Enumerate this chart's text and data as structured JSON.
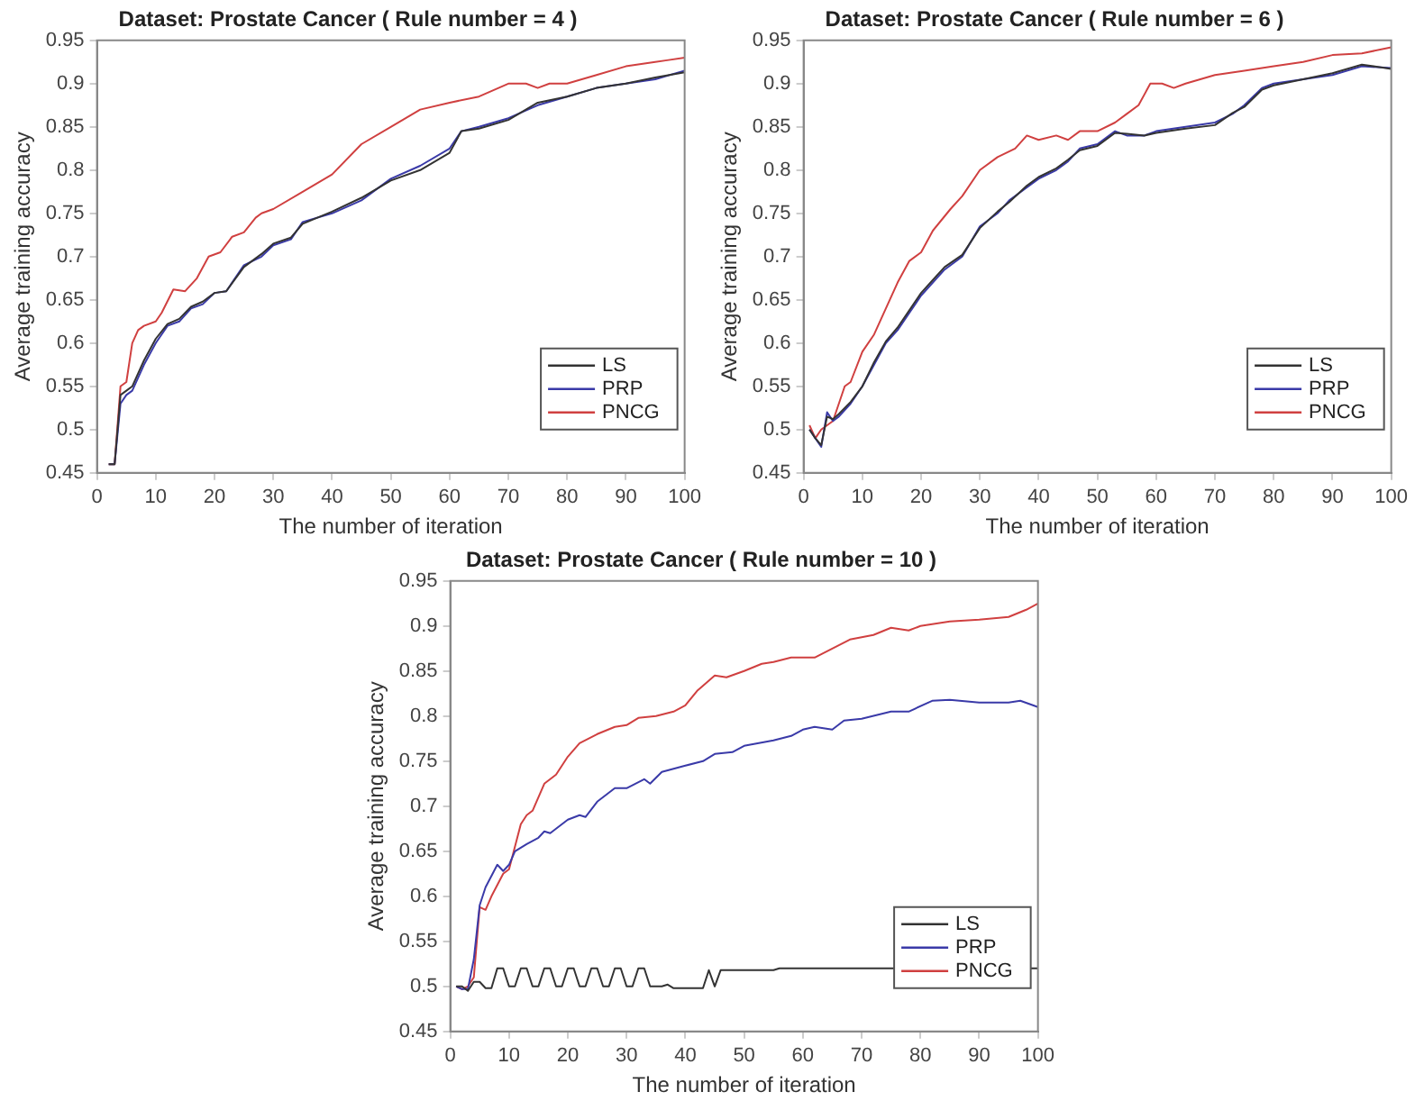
{
  "chart_data": [
    {
      "type": "line",
      "title": "Dataset: Prostate Cancer ( Rule number = 4 )",
      "xlabel": "The number of iteration",
      "ylabel": "Average training accuracy",
      "xlim": [
        0,
        100
      ],
      "xticks": [
        0,
        10,
        20,
        30,
        40,
        50,
        60,
        70,
        80,
        90,
        100
      ],
      "ylim": [
        0.45,
        0.95
      ],
      "yticks": [
        0.45,
        0.5,
        0.55,
        0.6,
        0.65,
        0.7,
        0.75,
        0.8,
        0.85,
        0.9,
        0.95
      ],
      "legend": "bottom right",
      "marker": "none",
      "line_style": "solid",
      "series": [
        {
          "name": "LS",
          "color": "#333333",
          "x": [
            2,
            3,
            4,
            5,
            6,
            8,
            10,
            12,
            14,
            16,
            18,
            20,
            22,
            25,
            28,
            30,
            33,
            35,
            40,
            45,
            50,
            55,
            60,
            62,
            65,
            70,
            75,
            80,
            85,
            90,
            95,
            100
          ],
          "values": [
            0.46,
            0.46,
            0.54,
            0.545,
            0.55,
            0.58,
            0.605,
            0.622,
            0.628,
            0.642,
            0.648,
            0.658,
            0.66,
            0.688,
            0.703,
            0.715,
            0.722,
            0.738,
            0.752,
            0.768,
            0.788,
            0.8,
            0.82,
            0.845,
            0.848,
            0.858,
            0.878,
            0.885,
            0.895,
            0.9,
            0.907,
            0.913
          ]
        },
        {
          "name": "PRP",
          "color": "#3a3aa8",
          "x": [
            2,
            3,
            4,
            5,
            6,
            8,
            10,
            12,
            14,
            16,
            18,
            20,
            22,
            25,
            28,
            30,
            33,
            35,
            40,
            45,
            50,
            55,
            60,
            62,
            65,
            70,
            75,
            80,
            85,
            90,
            95,
            100
          ],
          "values": [
            0.46,
            0.46,
            0.53,
            0.54,
            0.545,
            0.575,
            0.6,
            0.62,
            0.625,
            0.64,
            0.645,
            0.658,
            0.66,
            0.69,
            0.7,
            0.713,
            0.72,
            0.74,
            0.75,
            0.765,
            0.79,
            0.805,
            0.825,
            0.845,
            0.85,
            0.86,
            0.875,
            0.885,
            0.895,
            0.9,
            0.905,
            0.915
          ]
        },
        {
          "name": "PNCG",
          "color": "#d04040",
          "x": [
            2,
            3,
            4,
            5,
            6,
            7,
            8,
            10,
            11,
            13,
            15,
            17,
            19,
            21,
            23,
            25,
            27,
            28,
            30,
            35,
            40,
            45,
            50,
            55,
            60,
            65,
            70,
            73,
            75,
            77,
            80,
            85,
            90,
            95,
            97,
            100
          ],
          "values": [
            0.46,
            0.46,
            0.55,
            0.555,
            0.6,
            0.615,
            0.62,
            0.625,
            0.635,
            0.662,
            0.66,
            0.675,
            0.7,
            0.705,
            0.723,
            0.728,
            0.745,
            0.75,
            0.755,
            0.775,
            0.795,
            0.83,
            0.85,
            0.87,
            0.878,
            0.885,
            0.9,
            0.9,
            0.895,
            0.9,
            0.9,
            0.91,
            0.92,
            0.925,
            0.927,
            0.93
          ]
        }
      ]
    },
    {
      "type": "line",
      "title": "Dataset: Prostate Cancer ( Rule number = 6 )",
      "xlabel": "The number of iteration",
      "ylabel": "Average training accuracy",
      "xlim": [
        0,
        100
      ],
      "xticks": [
        0,
        10,
        20,
        30,
        40,
        50,
        60,
        70,
        80,
        90,
        100
      ],
      "ylim": [
        0.45,
        0.95
      ],
      "yticks": [
        0.45,
        0.5,
        0.55,
        0.6,
        0.65,
        0.7,
        0.75,
        0.8,
        0.85,
        0.9,
        0.95
      ],
      "legend": "bottom right",
      "marker": "none",
      "line_style": "solid",
      "series": [
        {
          "name": "LS",
          "color": "#333333",
          "x": [
            1,
            2,
            3,
            4,
            5,
            6,
            8,
            10,
            12,
            14,
            16,
            18,
            20,
            22,
            24,
            27,
            30,
            33,
            35,
            38,
            40,
            43,
            45,
            47,
            50,
            53,
            55,
            58,
            60,
            65,
            70,
            73,
            75,
            78,
            80,
            85,
            90,
            95,
            100
          ],
          "values": [
            0.5,
            0.49,
            0.482,
            0.515,
            0.512,
            0.518,
            0.532,
            0.55,
            0.578,
            0.602,
            0.618,
            0.638,
            0.658,
            0.673,
            0.688,
            0.702,
            0.733,
            0.752,
            0.763,
            0.782,
            0.792,
            0.802,
            0.812,
            0.823,
            0.828,
            0.843,
            0.842,
            0.84,
            0.843,
            0.848,
            0.852,
            0.866,
            0.873,
            0.893,
            0.898,
            0.905,
            0.912,
            0.922,
            0.917
          ]
        },
        {
          "name": "PRP",
          "color": "#3a3aa8",
          "x": [
            1,
            2,
            3,
            4,
            5,
            6,
            8,
            10,
            12,
            14,
            16,
            18,
            20,
            22,
            24,
            27,
            30,
            33,
            35,
            38,
            40,
            43,
            45,
            47,
            50,
            53,
            55,
            58,
            60,
            65,
            70,
            73,
            75,
            78,
            80,
            85,
            90,
            95,
            100
          ],
          "values": [
            0.5,
            0.49,
            0.48,
            0.52,
            0.51,
            0.515,
            0.53,
            0.55,
            0.575,
            0.6,
            0.615,
            0.635,
            0.655,
            0.67,
            0.685,
            0.7,
            0.735,
            0.75,
            0.765,
            0.78,
            0.79,
            0.8,
            0.81,
            0.825,
            0.83,
            0.845,
            0.84,
            0.84,
            0.845,
            0.85,
            0.855,
            0.865,
            0.875,
            0.895,
            0.9,
            0.905,
            0.91,
            0.92,
            0.918
          ]
        },
        {
          "name": "PNCG",
          "color": "#d04040",
          "x": [
            1,
            2,
            3,
            5,
            7,
            8,
            10,
            12,
            14,
            16,
            18,
            20,
            22,
            25,
            27,
            30,
            33,
            36,
            38,
            40,
            43,
            45,
            47,
            50,
            53,
            55,
            57,
            59,
            61,
            63,
            65,
            70,
            75,
            80,
            85,
            90,
            95,
            100
          ],
          "values": [
            0.505,
            0.49,
            0.5,
            0.51,
            0.55,
            0.555,
            0.59,
            0.61,
            0.64,
            0.67,
            0.695,
            0.705,
            0.73,
            0.755,
            0.77,
            0.8,
            0.815,
            0.825,
            0.84,
            0.835,
            0.84,
            0.835,
            0.845,
            0.845,
            0.855,
            0.865,
            0.875,
            0.9,
            0.9,
            0.895,
            0.9,
            0.91,
            0.915,
            0.92,
            0.925,
            0.933,
            0.935,
            0.942
          ]
        }
      ]
    },
    {
      "type": "line",
      "title": "Dataset: Prostate Cancer ( Rule number = 10 )",
      "xlabel": "The number of iteration",
      "ylabel": "Average training accuracy",
      "xlim": [
        0,
        100
      ],
      "xticks": [
        0,
        10,
        20,
        30,
        40,
        50,
        60,
        70,
        80,
        90,
        100
      ],
      "ylim": [
        0.45,
        0.95
      ],
      "yticks": [
        0.45,
        0.5,
        0.55,
        0.6,
        0.65,
        0.7,
        0.75,
        0.8,
        0.85,
        0.9,
        0.95
      ],
      "legend": "bottom right",
      "marker": "none",
      "line_style": "solid",
      "series": [
        {
          "name": "LS",
          "color": "#333333",
          "x": [
            1,
            2,
            3,
            4,
            5,
            6,
            7,
            8,
            9,
            10,
            11,
            12,
            13,
            14,
            15,
            16,
            17,
            18,
            19,
            20,
            21,
            22,
            23,
            24,
            25,
            26,
            27,
            28,
            29,
            30,
            31,
            32,
            33,
            34,
            36,
            37,
            38,
            43,
            44,
            45,
            46,
            55,
            56,
            100
          ],
          "values": [
            0.5,
            0.5,
            0.495,
            0.505,
            0.505,
            0.498,
            0.498,
            0.52,
            0.52,
            0.5,
            0.5,
            0.52,
            0.52,
            0.5,
            0.5,
            0.52,
            0.52,
            0.5,
            0.5,
            0.52,
            0.52,
            0.5,
            0.5,
            0.52,
            0.52,
            0.5,
            0.5,
            0.52,
            0.52,
            0.5,
            0.5,
            0.52,
            0.52,
            0.5,
            0.5,
            0.502,
            0.498,
            0.498,
            0.518,
            0.5,
            0.518,
            0.518,
            0.52,
            0.52
          ]
        },
        {
          "name": "PRP",
          "color": "#3a3aa8",
          "x": [
            1,
            2,
            3,
            4,
            5,
            6,
            8,
            9,
            10,
            11,
            13,
            15,
            16,
            17,
            20,
            22,
            23,
            25,
            28,
            30,
            33,
            34,
            36,
            40,
            43,
            45,
            48,
            50,
            55,
            58,
            60,
            62,
            65,
            67,
            70,
            75,
            78,
            82,
            85,
            90,
            95,
            97,
            100
          ],
          "values": [
            0.5,
            0.497,
            0.497,
            0.53,
            0.59,
            0.61,
            0.635,
            0.628,
            0.635,
            0.65,
            0.658,
            0.665,
            0.672,
            0.67,
            0.685,
            0.69,
            0.688,
            0.705,
            0.72,
            0.72,
            0.73,
            0.725,
            0.738,
            0.745,
            0.75,
            0.758,
            0.76,
            0.767,
            0.773,
            0.778,
            0.785,
            0.788,
            0.785,
            0.795,
            0.797,
            0.805,
            0.805,
            0.817,
            0.818,
            0.815,
            0.815,
            0.817,
            0.81
          ]
        },
        {
          "name": "PNCG",
          "color": "#d04040",
          "x": [
            1,
            2,
            3,
            4,
            5,
            6,
            7,
            9,
            10,
            12,
            13,
            14,
            16,
            18,
            20,
            22,
            25,
            28,
            30,
            32,
            35,
            38,
            40,
            42,
            45,
            47,
            50,
            53,
            55,
            58,
            62,
            65,
            68,
            72,
            75,
            78,
            80,
            85,
            90,
            95,
            98,
            100
          ],
          "values": [
            0.5,
            0.497,
            0.5,
            0.51,
            0.588,
            0.585,
            0.6,
            0.625,
            0.63,
            0.68,
            0.69,
            0.695,
            0.725,
            0.735,
            0.755,
            0.77,
            0.78,
            0.788,
            0.79,
            0.798,
            0.8,
            0.805,
            0.812,
            0.828,
            0.845,
            0.843,
            0.85,
            0.858,
            0.86,
            0.865,
            0.865,
            0.875,
            0.885,
            0.89,
            0.898,
            0.895,
            0.9,
            0.905,
            0.907,
            0.91,
            0.918,
            0.925
          ]
        }
      ]
    }
  ]
}
